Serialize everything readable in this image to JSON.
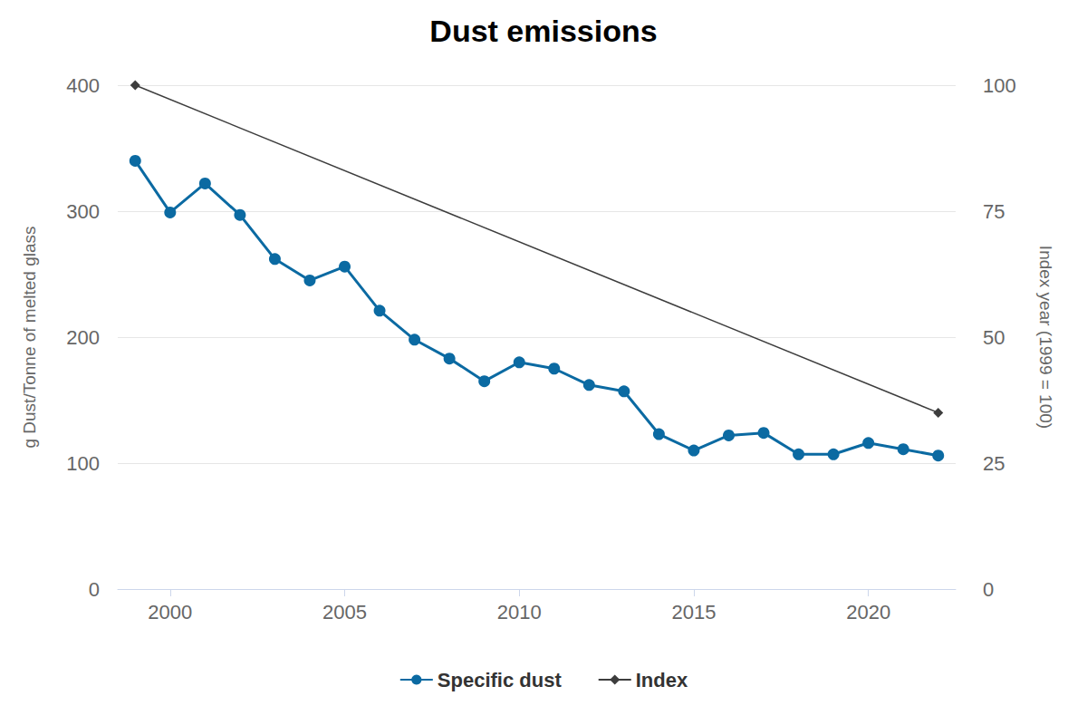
{
  "chart_data": {
    "type": "line",
    "title": "Dust emissions",
    "x": [
      1999,
      2000,
      2001,
      2002,
      2003,
      2004,
      2005,
      2006,
      2007,
      2008,
      2009,
      2010,
      2011,
      2012,
      2013,
      2014,
      2015,
      2016,
      2017,
      2018,
      2019,
      2020,
      2021,
      2022
    ],
    "xlim": [
      1998.5,
      2022.5
    ],
    "xticks": [
      2000,
      2005,
      2010,
      2015,
      2020
    ],
    "ylabel": "g Dust/Tonne of melted glass",
    "ylim": [
      0,
      400
    ],
    "yticks": [
      0,
      100,
      200,
      300,
      400
    ],
    "y2label": "Index year (1999 = 100)",
    "y2lim": [
      0,
      100
    ],
    "y2ticks": [
      0,
      25,
      50,
      75,
      100
    ],
    "grid": true,
    "legend": "bottom",
    "series": [
      {
        "name": "Specific dust",
        "color": "#0b6aa2",
        "marker": "circle",
        "values": [
          340,
          299,
          322,
          297,
          262,
          245,
          256,
          221,
          198,
          183,
          165,
          180,
          175,
          162,
          157,
          123,
          110,
          122,
          124,
          107,
          107,
          116,
          111,
          106
        ]
      },
      {
        "name": "Index",
        "color": "#3d3d3d",
        "marker": "diamond",
        "axis": "y2",
        "x": [
          1999,
          2022
        ],
        "values": [
          100,
          35
        ]
      }
    ]
  }
}
